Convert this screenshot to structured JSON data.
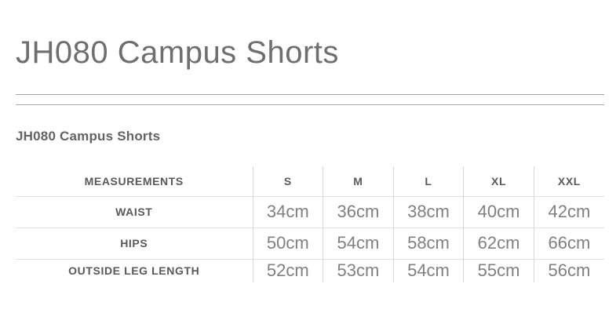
{
  "page": {
    "title": "JH080 Campus Shorts",
    "section_heading": "JH080 Campus Shorts"
  },
  "size_chart": {
    "columns": [
      "MEASUREMENTS",
      "S",
      "M",
      "L",
      "XL",
      "XXL"
    ],
    "rows": [
      {
        "label": "WAIST",
        "values": [
          "34cm",
          "36cm",
          "38cm",
          "40cm",
          "42cm"
        ]
      },
      {
        "label": "HIPS",
        "values": [
          "50cm",
          "54cm",
          "58cm",
          "62cm",
          "66cm"
        ]
      },
      {
        "label": "OUTSIDE LEG LENGTH",
        "values": [
          "52cm",
          "53cm",
          "54cm",
          "55cm",
          "56cm"
        ]
      }
    ]
  },
  "colors": {
    "title_text": "#6f6f6f",
    "heading_text": "#636363",
    "table_label_text": "#58595b",
    "table_value_text": "#808080",
    "divider_line": "#a3a3a3",
    "table_border": "#d9d9d9",
    "background": "#ffffff"
  }
}
